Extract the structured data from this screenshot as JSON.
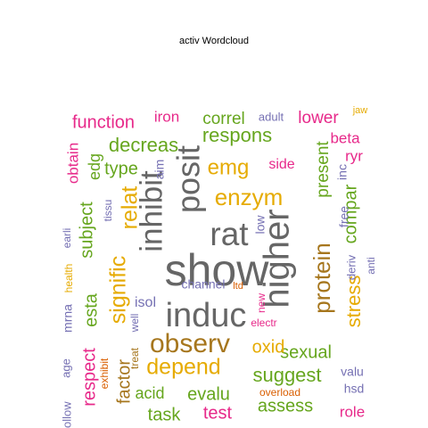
{
  "title": "activ  Wordcloud",
  "palette": {
    "magenta": "#e7298a",
    "purple": "#7570b3",
    "green": "#66a61e",
    "gold": "#e6ab02",
    "orange": "#d95f02",
    "brown": "#a6761d",
    "gray": "#666666"
  },
  "words": [
    "show",
    "induc",
    "higher",
    "rat",
    "posit",
    "inhibit",
    "protein",
    "observ",
    "depend",
    "enzym",
    "emg",
    "signific",
    "relat",
    "suggest",
    "stress",
    "respons",
    "decreas",
    "function",
    "correl",
    "lower",
    "present",
    "compar",
    "esta",
    "subject",
    "type",
    "sexual",
    "oxid",
    "evalu",
    "factor",
    "assess",
    "respect",
    "task",
    "test",
    "acid",
    "edg",
    "obtain",
    "iron",
    "beta",
    "ryr",
    "side",
    "isol",
    "channel",
    "role",
    "valu",
    "hsd",
    "aim",
    "low",
    "free",
    "inc",
    "adult",
    "jaw",
    "tissu",
    "earli",
    "health",
    "mrna",
    "exhibit",
    "treat",
    "well",
    "electr",
    "new",
    "ltd",
    "deriv",
    "anti",
    "overload",
    "follow",
    "age"
  ]
}
